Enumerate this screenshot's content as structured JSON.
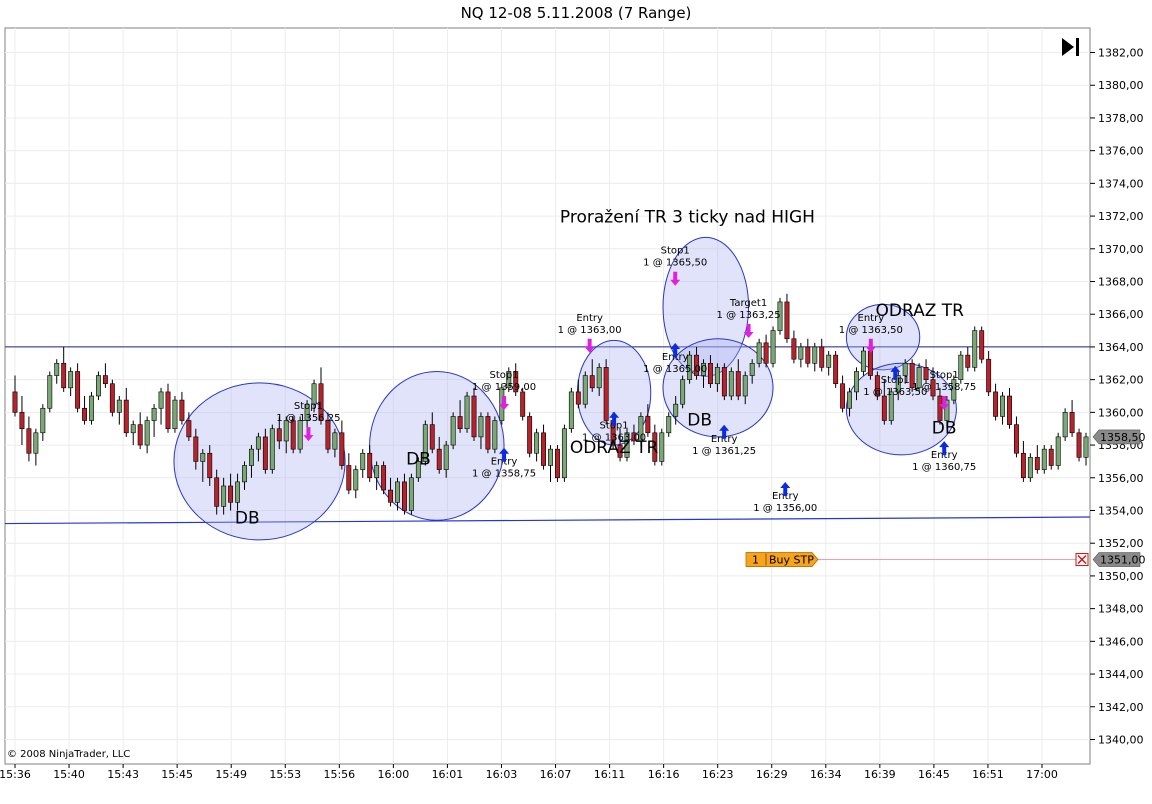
{
  "chart_data": {
    "type": "candlestick",
    "title": "NQ 12-08  5.11.2008 (7 Range)",
    "copyright": "© 2008 NinjaTrader, LLC",
    "ylim": [
      1338.5,
      1383.5
    ],
    "y_ticks": [
      "1340,00",
      "1342,00",
      "1344,00",
      "1346,00",
      "1348,00",
      "1350,00",
      "1352,00",
      "1354,00",
      "1356,00",
      "1358,00",
      "1360,00",
      "1362,00",
      "1364,00",
      "1366,00",
      "1368,00",
      "1370,00",
      "1372,00",
      "1374,00",
      "1376,00",
      "1378,00",
      "1380,00",
      "1382,00"
    ],
    "x_ticks": [
      "15:36",
      "15:40",
      "15:43",
      "15:45",
      "15:49",
      "15:53",
      "15:56",
      "16:00",
      "16:01",
      "16:03",
      "16:07",
      "16:11",
      "16:16",
      "16:23",
      "16:29",
      "16:34",
      "16:39",
      "16:45",
      "16:51",
      "17:00"
    ],
    "last_price_label": "1358,50",
    "last_price": 1358.5,
    "order": {
      "qty": "1",
      "label": "Buy STP",
      "price_label": "1351,00",
      "price": 1351.0
    },
    "horizontal_lines": [
      {
        "name": "range-high",
        "y": 1364.0
      },
      {
        "name": "range-low",
        "y_start": 1353.2,
        "y_end": 1353.6
      }
    ],
    "annotations_large": [
      {
        "text": "Proražení TR 3 ticky nad HIGH",
        "anchor": 16.31,
        "y": 1371.6
      },
      {
        "text": "ODRAZ TR",
        "anchor": 16.5,
        "y": 1365.9
      },
      {
        "text": "ODRAZ TR",
        "anchor": 16.255,
        "y": 1357.5
      },
      {
        "text": "DB",
        "anchor": 15.55,
        "y": 1353.2
      },
      {
        "text": "DB",
        "anchor": 16.09,
        "y": 1356.8
      },
      {
        "text": "DB",
        "anchor": 16.32,
        "y": 1359.2
      },
      {
        "text": "DB",
        "anchor": 16.515,
        "y": 1358.7
      }
    ],
    "trade_labels": [
      {
        "title": "Stop1",
        "value": "1 @ 1356,25",
        "anchor": 16.0,
        "y": 1360.2,
        "arrow": "down"
      },
      {
        "title": "Entry",
        "value": "1 @ 1356,00",
        "anchor": 15.995,
        "y": 1354.7,
        "arrow": "up"
      },
      {
        "title": "Stop1",
        "value": "1 @ 1359,00",
        "anchor": 16.165,
        "y": 1362.1,
        "arrow": "down"
      },
      {
        "title": "Entry",
        "value": "1 @ 1358,75",
        "anchor": 16.16,
        "y": 1356.8,
        "arrow": "up"
      },
      {
        "title": "Entry",
        "value": "1 @ 1363,00",
        "anchor": 16.225,
        "y": 1365.6,
        "arrow": "down"
      },
      {
        "title": "Stop1",
        "value": "1 @ 1363,00",
        "anchor": 16.245,
        "y": 1359.0,
        "arrow": "up"
      },
      {
        "title": "Stop1",
        "value": "1 @ 1365,50",
        "anchor": 16.3,
        "y": 1369.7,
        "arrow": "down"
      },
      {
        "title": "Entry",
        "value": "1 @ 1365,00",
        "anchor": 16.3,
        "y": 1363.2,
        "arrow": "up"
      },
      {
        "title": "Target1",
        "value": "1 @ 1363,25",
        "anchor": 16.36,
        "y": 1366.5,
        "arrow": "down"
      },
      {
        "title": "Entry",
        "value": "1 @ 1361,25",
        "anchor": 16.345,
        "y": 1358.2,
        "arrow": "up"
      },
      {
        "title": "Entry",
        "value": "1 @ 1363,50",
        "anchor": 16.465,
        "y": 1365.6,
        "arrow": "down"
      },
      {
        "title": "Stop1",
        "value": "1 @ 1363,50",
        "anchor": 16.48,
        "y": 1361.8,
        "arrow": "up"
      },
      {
        "title": "Stop1",
        "value": "1 @ 1358,75",
        "anchor": 16.52,
        "y": 1362.1,
        "arrow": "down"
      },
      {
        "title": "Entry",
        "value": "1 @ 1360,75",
        "anchor": 16.515,
        "y": 1357.2,
        "arrow": "up"
      }
    ],
    "ellipses": [
      {
        "name": "db-1",
        "x0": 15.495,
        "x1": 15.635,
        "y0": 1352.2,
        "y1": 1361.8
      },
      {
        "name": "db-2",
        "x0": 16.045,
        "x1": 16.155,
        "y0": 1353.4,
        "y1": 1362.5
      },
      {
        "name": "odraz-tr-1",
        "x0": 16.22,
        "x1": 16.28,
        "y0": 1358.0,
        "y1": 1364.4
      },
      {
        "name": "breakout",
        "x0": 16.285,
        "x1": 16.365,
        "y0": 1362.2,
        "y1": 1370.7
      },
      {
        "name": "db-3",
        "x0": 16.29,
        "x1": 16.38,
        "y0": 1358.5,
        "y1": 1364.5
      },
      {
        "name": "odraz-tr-2",
        "x0": 16.44,
        "x1": 16.505,
        "y0": 1362.6,
        "y1": 1366.6
      },
      {
        "name": "db-4",
        "x0": 16.44,
        "x1": 16.53,
        "y0": 1357.4,
        "y1": 1363.0
      }
    ],
    "candles": [
      [
        1361.25,
        1362.25,
        1359.75,
        1360.0
      ],
      [
        1360.0,
        1361.0,
        1358.0,
        1359.0
      ],
      [
        1359.0,
        1359.75,
        1357.0,
        1357.5
      ],
      [
        1357.5,
        1359.0,
        1356.75,
        1358.75
      ],
      [
        1358.75,
        1360.5,
        1358.25,
        1360.25
      ],
      [
        1360.25,
        1362.5,
        1360.0,
        1362.25
      ],
      [
        1362.25,
        1363.25,
        1361.75,
        1363.0
      ],
      [
        1363.0,
        1364.0,
        1361.25,
        1361.5
      ],
      [
        1361.5,
        1362.75,
        1361.0,
        1362.5
      ],
      [
        1362.5,
        1363.0,
        1360.0,
        1360.25
      ],
      [
        1360.25,
        1361.0,
        1359.25,
        1359.5
      ],
      [
        1359.5,
        1361.25,
        1359.25,
        1361.0
      ],
      [
        1361.0,
        1362.5,
        1360.75,
        1362.25
      ],
      [
        1362.25,
        1363.0,
        1361.5,
        1361.75
      ],
      [
        1361.75,
        1362.0,
        1359.75,
        1360.0
      ],
      [
        1360.0,
        1361.0,
        1359.25,
        1360.75
      ],
      [
        1360.75,
        1361.5,
        1358.5,
        1358.75
      ],
      [
        1358.75,
        1359.5,
        1358.0,
        1359.25
      ],
      [
        1359.25,
        1360.0,
        1357.75,
        1358.0
      ],
      [
        1358.0,
        1359.75,
        1357.5,
        1359.5
      ],
      [
        1359.5,
        1360.5,
        1358.5,
        1360.25
      ],
      [
        1360.25,
        1361.5,
        1359.25,
        1361.25
      ],
      [
        1361.25,
        1361.75,
        1358.75,
        1359.0
      ],
      [
        1359.0,
        1361.0,
        1358.75,
        1360.75
      ],
      [
        1360.75,
        1361.25,
        1359.25,
        1359.5
      ],
      [
        1359.5,
        1360.0,
        1358.25,
        1358.5
      ],
      [
        1358.5,
        1359.0,
        1356.5,
        1357.0
      ],
      [
        1357.0,
        1357.75,
        1355.75,
        1357.5
      ],
      [
        1357.5,
        1358.0,
        1355.5,
        1356.0
      ],
      [
        1356.0,
        1356.5,
        1353.75,
        1354.25
      ],
      [
        1354.25,
        1356.0,
        1353.75,
        1355.5
      ],
      [
        1355.5,
        1356.25,
        1354.0,
        1354.5
      ],
      [
        1354.5,
        1356.25,
        1354.0,
        1355.75
      ],
      [
        1355.75,
        1357.0,
        1355.25,
        1356.75
      ],
      [
        1356.75,
        1358.0,
        1356.0,
        1357.75
      ],
      [
        1357.75,
        1358.75,
        1357.0,
        1358.5
      ],
      [
        1358.5,
        1359.0,
        1356.25,
        1356.5
      ],
      [
        1356.5,
        1359.25,
        1356.25,
        1359.0
      ],
      [
        1359.0,
        1359.75,
        1357.75,
        1358.25
      ],
      [
        1358.25,
        1359.75,
        1357.5,
        1359.5
      ],
      [
        1359.5,
        1359.75,
        1357.5,
        1357.75
      ],
      [
        1357.75,
        1359.75,
        1357.5,
        1359.5
      ],
      [
        1359.5,
        1360.75,
        1359.0,
        1360.5
      ],
      [
        1360.5,
        1362.0,
        1360.0,
        1361.75
      ],
      [
        1361.75,
        1362.75,
        1359.25,
        1359.5
      ],
      [
        1359.5,
        1360.0,
        1357.5,
        1357.75
      ],
      [
        1357.75,
        1359.0,
        1357.25,
        1358.75
      ],
      [
        1358.75,
        1359.5,
        1356.5,
        1356.75
      ],
      [
        1356.75,
        1357.5,
        1355.0,
        1355.25
      ],
      [
        1355.25,
        1356.75,
        1354.75,
        1356.5
      ],
      [
        1356.5,
        1357.75,
        1356.0,
        1357.5
      ],
      [
        1357.5,
        1358.0,
        1355.75,
        1356.0
      ],
      [
        1356.0,
        1357.0,
        1355.25,
        1356.75
      ],
      [
        1356.75,
        1357.0,
        1355.0,
        1355.25
      ],
      [
        1355.25,
        1356.0,
        1354.25,
        1354.5
      ],
      [
        1354.5,
        1356.0,
        1354.0,
        1355.75
      ],
      [
        1355.75,
        1356.25,
        1353.75,
        1354.0
      ],
      [
        1354.0,
        1356.25,
        1353.75,
        1356.0
      ],
      [
        1356.0,
        1357.25,
        1355.75,
        1357.0
      ],
      [
        1357.0,
        1359.5,
        1356.75,
        1359.25
      ],
      [
        1359.25,
        1360.0,
        1357.5,
        1357.75
      ],
      [
        1357.75,
        1358.5,
        1356.25,
        1356.5
      ],
      [
        1356.5,
        1358.25,
        1356.0,
        1358.0
      ],
      [
        1358.0,
        1360.0,
        1357.75,
        1359.75
      ],
      [
        1359.75,
        1360.75,
        1358.75,
        1359.0
      ],
      [
        1359.0,
        1361.25,
        1358.75,
        1361.0
      ],
      [
        1361.0,
        1361.5,
        1358.25,
        1358.5
      ],
      [
        1358.5,
        1360.0,
        1357.75,
        1359.75
      ],
      [
        1359.75,
        1360.0,
        1357.5,
        1357.75
      ],
      [
        1357.75,
        1359.75,
        1357.5,
        1359.5
      ],
      [
        1359.5,
        1361.75,
        1359.25,
        1361.5
      ],
      [
        1361.5,
        1362.75,
        1361.25,
        1362.5
      ],
      [
        1362.5,
        1363.0,
        1361.0,
        1361.25
      ],
      [
        1361.25,
        1361.5,
        1359.5,
        1359.75
      ],
      [
        1359.75,
        1360.0,
        1357.25,
        1357.5
      ],
      [
        1357.5,
        1359.0,
        1357.0,
        1358.75
      ],
      [
        1358.75,
        1359.25,
        1356.5,
        1356.75
      ],
      [
        1356.75,
        1358.0,
        1355.75,
        1357.75
      ],
      [
        1357.75,
        1358.0,
        1355.75,
        1356.0
      ],
      [
        1356.0,
        1359.25,
        1355.75,
        1359.0
      ],
      [
        1359.0,
        1361.5,
        1358.75,
        1361.25
      ],
      [
        1361.25,
        1362.0,
        1360.25,
        1360.5
      ],
      [
        1360.5,
        1362.5,
        1360.25,
        1362.25
      ],
      [
        1362.25,
        1363.25,
        1361.25,
        1361.5
      ],
      [
        1361.5,
        1363.0,
        1361.0,
        1362.75
      ],
      [
        1362.75,
        1363.25,
        1359.25,
        1359.5
      ],
      [
        1359.5,
        1360.0,
        1357.75,
        1358.0
      ],
      [
        1358.0,
        1359.0,
        1357.0,
        1357.25
      ],
      [
        1357.25,
        1359.0,
        1357.0,
        1358.75
      ],
      [
        1358.75,
        1359.25,
        1358.0,
        1358.25
      ],
      [
        1358.25,
        1360.0,
        1358.0,
        1359.75
      ],
      [
        1359.75,
        1360.5,
        1358.5,
        1358.75
      ],
      [
        1358.75,
        1359.25,
        1356.75,
        1357.0
      ],
      [
        1357.0,
        1359.0,
        1356.75,
        1358.75
      ],
      [
        1358.75,
        1360.0,
        1358.5,
        1359.75
      ],
      [
        1359.75,
        1361.0,
        1359.25,
        1360.5
      ],
      [
        1360.5,
        1362.25,
        1360.25,
        1362.0
      ],
      [
        1362.0,
        1363.75,
        1361.75,
        1363.5
      ],
      [
        1363.5,
        1364.0,
        1362.0,
        1362.25
      ],
      [
        1362.25,
        1363.25,
        1361.5,
        1363.0
      ],
      [
        1363.0,
        1363.5,
        1361.5,
        1361.75
      ],
      [
        1361.75,
        1363.0,
        1361.25,
        1362.75
      ],
      [
        1362.75,
        1363.0,
        1360.75,
        1361.0
      ],
      [
        1361.0,
        1362.75,
        1360.75,
        1362.5
      ],
      [
        1362.5,
        1363.25,
        1360.75,
        1361.0
      ],
      [
        1361.0,
        1362.5,
        1360.5,
        1362.25
      ],
      [
        1362.25,
        1363.25,
        1361.75,
        1363.0
      ],
      [
        1363.0,
        1364.5,
        1362.75,
        1364.25
      ],
      [
        1364.25,
        1364.75,
        1362.75,
        1363.0
      ],
      [
        1363.0,
        1365.25,
        1362.75,
        1365.0
      ],
      [
        1365.0,
        1367.0,
        1364.75,
        1366.75
      ],
      [
        1366.75,
        1367.25,
        1364.25,
        1364.5
      ],
      [
        1364.5,
        1365.0,
        1363.0,
        1363.25
      ],
      [
        1363.25,
        1364.25,
        1362.75,
        1364.0
      ],
      [
        1364.0,
        1364.5,
        1362.75,
        1363.0
      ],
      [
        1363.0,
        1364.25,
        1362.5,
        1364.0
      ],
      [
        1364.0,
        1364.5,
        1362.5,
        1362.75
      ],
      [
        1362.75,
        1363.75,
        1362.25,
        1363.5
      ],
      [
        1363.5,
        1363.75,
        1361.5,
        1361.75
      ],
      [
        1361.75,
        1362.25,
        1360.0,
        1360.25
      ],
      [
        1360.25,
        1361.5,
        1359.75,
        1361.25
      ],
      [
        1361.25,
        1362.75,
        1360.75,
        1362.5
      ],
      [
        1362.5,
        1364.0,
        1362.25,
        1363.75
      ],
      [
        1363.75,
        1364.0,
        1362.0,
        1362.25
      ],
      [
        1362.25,
        1362.5,
        1360.75,
        1361.0
      ],
      [
        1361.0,
        1362.0,
        1359.25,
        1359.5
      ],
      [
        1359.5,
        1361.5,
        1359.25,
        1361.25
      ],
      [
        1361.25,
        1362.5,
        1360.75,
        1362.25
      ],
      [
        1362.25,
        1363.25,
        1361.75,
        1363.0
      ],
      [
        1363.0,
        1363.25,
        1361.25,
        1361.5
      ],
      [
        1361.5,
        1363.0,
        1361.25,
        1362.75
      ],
      [
        1362.75,
        1363.25,
        1361.75,
        1362.0
      ],
      [
        1362.0,
        1362.75,
        1360.75,
        1361.0
      ],
      [
        1361.0,
        1361.5,
        1359.25,
        1359.5
      ],
      [
        1359.5,
        1361.0,
        1359.0,
        1360.75
      ],
      [
        1360.75,
        1362.25,
        1360.5,
        1362.0
      ],
      [
        1362.0,
        1363.75,
        1361.75,
        1363.5
      ],
      [
        1363.5,
        1364.0,
        1362.5,
        1362.75
      ],
      [
        1362.75,
        1365.25,
        1362.5,
        1365.0
      ],
      [
        1365.0,
        1365.25,
        1363.0,
        1363.25
      ],
      [
        1363.25,
        1363.75,
        1361.0,
        1361.25
      ],
      [
        1361.25,
        1361.75,
        1359.5,
        1359.75
      ],
      [
        1359.75,
        1361.25,
        1359.25,
        1361.0
      ],
      [
        1361.0,
        1361.5,
        1359.0,
        1359.25
      ],
      [
        1359.25,
        1359.75,
        1357.25,
        1357.5
      ],
      [
        1357.5,
        1358.25,
        1355.75,
        1356.0
      ],
      [
        1356.0,
        1357.5,
        1355.75,
        1357.25
      ],
      [
        1357.25,
        1358.0,
        1356.25,
        1356.5
      ],
      [
        1356.5,
        1358.0,
        1356.25,
        1357.75
      ],
      [
        1357.75,
        1358.0,
        1356.5,
        1356.75
      ],
      [
        1356.75,
        1358.75,
        1356.5,
        1358.5
      ],
      [
        1358.5,
        1360.25,
        1358.25,
        1360.0
      ],
      [
        1360.0,
        1360.75,
        1358.5,
        1358.75
      ],
      [
        1358.75,
        1359.0,
        1357.0,
        1357.25
      ],
      [
        1357.25,
        1358.75,
        1356.75,
        1358.5
      ]
    ]
  }
}
